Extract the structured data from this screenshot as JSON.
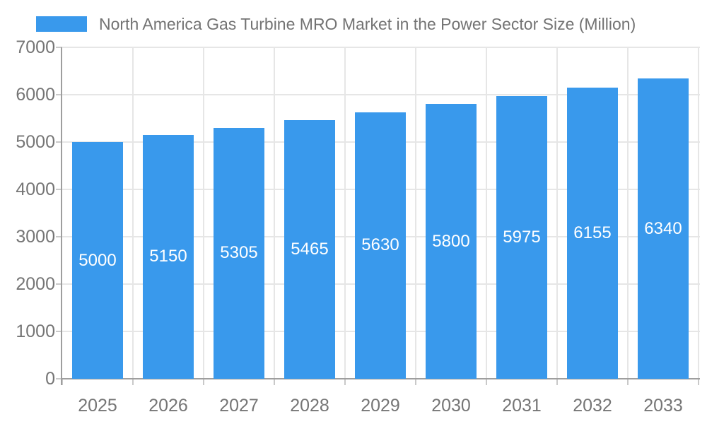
{
  "legend": {
    "label": "North America Gas Turbine MRO Market in the Power Sector Size (Million)",
    "swatch_color": "#3999EC"
  },
  "chart_data": {
    "type": "bar",
    "title": "North America Gas Turbine MRO Market in the Power Sector Size (Million)",
    "categories": [
      "2025",
      "2026",
      "2027",
      "2028",
      "2029",
      "2030",
      "2031",
      "2032",
      "2033"
    ],
    "values": [
      5000,
      5150,
      5305,
      5465,
      5630,
      5800,
      5975,
      6155,
      6340
    ],
    "value_labels": [
      "5000",
      "5150",
      "5305",
      "5465",
      "5630",
      "5800",
      "5975",
      "6155",
      "6340"
    ],
    "xlabel": "",
    "ylabel": "",
    "ylim": [
      0,
      7000
    ],
    "yticks": [
      "0",
      "1000",
      "2000",
      "3000",
      "4000",
      "5000",
      "6000",
      "7000"
    ],
    "ytick_step": 1000,
    "grid": true,
    "legend_position": "top-left",
    "colors": {
      "bar": "#3999EC",
      "value_label": "#ffffff",
      "axis_text": "#757575",
      "grid_line": "#e6e6e6",
      "axis_line": "#9e9e9e",
      "tick": "#c9c9c9",
      "background": "#ffffff"
    }
  }
}
